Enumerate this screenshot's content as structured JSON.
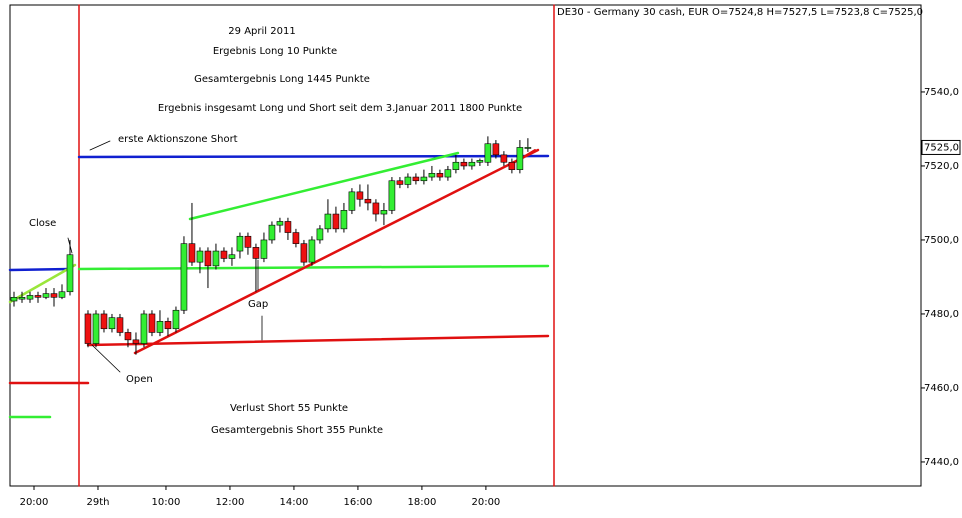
{
  "chart_data": {
    "type": "candlestick",
    "title": "DE30 - Germany 30 cash, EUR O=7524,8 H=7527,5 L=7523,8 C=7525,0",
    "annotations": [
      "29 April 2011",
      "Ergebnis Long 10 Punkte",
      "Gesamtergebnis Long 1445 Punkte",
      "Ergebnis insgesamt Long und Short seit dem 3.Januar 2011 1800  Punkte",
      "erste Aktionszone Short",
      "Close",
      "Open",
      "Gap",
      "Verlust Short 55 Punkte",
      "Gesamtergebnis Short 355 Punkte"
    ],
    "up_color": "#33ee33",
    "down_color": "#ee1111",
    "x": [
      0.5,
      1.5,
      2.5,
      3.5,
      4.5,
      5.5,
      6.5,
      7.5,
      9.75,
      10.75,
      11.75,
      12.75,
      13.75,
      14.75,
      15.75,
      16.75,
      17.75,
      18.75,
      19.75,
      20.75,
      21.75,
      22.75,
      23.75,
      24.75,
      25.75,
      26.75,
      27.75,
      28.75,
      29.75,
      30.75,
      31.75,
      32.75,
      33.75,
      34.75,
      35.75,
      36.75,
      37.75,
      38.75,
      39.75,
      40.75,
      41.75,
      42.75,
      43.75,
      44.75,
      45.75,
      46.75,
      47.75,
      48.75,
      49.75,
      50.75,
      51.75,
      52.75,
      53.75,
      54.75,
      55.75,
      56.75,
      57.75,
      58.75,
      59.75,
      60.75,
      61.75,
      62.75,
      63.75,
      64.75
    ],
    "open": [
      7483.5,
      7484,
      7484,
      7485,
      7484.5,
      7485.5,
      7484.5,
      7486,
      7480,
      7472,
      7480,
      7476,
      7479,
      7475,
      7473,
      7472,
      7480,
      7475,
      7478,
      7476,
      7481,
      7499,
      7494,
      7497,
      7493,
      7497,
      7495,
      7497,
      7501,
      7498,
      7495,
      7500,
      7504,
      7505,
      7502,
      7499,
      7494,
      7500,
      7503,
      7507,
      7503,
      7508,
      7513,
      7511,
      7510,
      7507,
      7508,
      7516,
      7515,
      7517,
      7516,
      7517,
      7518,
      7517,
      7519,
      7521,
      7520,
      7521,
      7521,
      7526,
      7523,
      7521,
      7519,
      7524.8
    ],
    "high": [
      7486,
      7486,
      7486,
      7486,
      7487,
      7487,
      7488,
      7500,
      7481,
      7481,
      7481,
      7480,
      7480,
      7476,
      7475,
      7481,
      7481,
      7481,
      7479,
      7482,
      7501,
      7510,
      7498,
      7498,
      7499,
      7498,
      7498,
      7502,
      7502,
      7499,
      7502,
      7505,
      7506,
      7506,
      7503,
      7500,
      7501,
      7504,
      7511,
      7509,
      7510,
      7514,
      7515,
      7515,
      7511,
      7510,
      7517,
      7517,
      7518,
      7518,
      7519,
      7520,
      7519,
      7520,
      7523,
      7522,
      7522,
      7522,
      7528,
      7527,
      7524,
      7522,
      7527,
      7527.5
    ],
    "low": [
      7482,
      7483,
      7483,
      7483,
      7484,
      7482,
      7484,
      7485,
      7471,
      7471,
      7475,
      7475,
      7474,
      7471,
      7469,
      7471,
      7474,
      7474,
      7474,
      7475,
      7480,
      7493,
      7491,
      7487,
      7492,
      7494,
      7493,
      7495,
      7496,
      7486,
      7494,
      7499,
      7502,
      7500,
      7498,
      7493,
      7493,
      7499,
      7502,
      7502,
      7502,
      7507,
      7509,
      7508,
      7505,
      7504,
      7507,
      7514,
      7514,
      7515,
      7515,
      7516,
      7516,
      7516,
      7518,
      7519,
      7519,
      7520,
      7520,
      7522,
      7520,
      7518,
      7518,
      7523.8
    ],
    "close": [
      7484.5,
      7484.5,
      7485,
      7484.5,
      7485.5,
      7484.5,
      7486,
      7496,
      7472,
      7480,
      7476,
      7479,
      7475,
      7473,
      7472,
      7480,
      7475,
      7478,
      7476,
      7481,
      7499,
      7494,
      7497,
      7493,
      7497,
      7495,
      7496,
      7501,
      7498,
      7495,
      7500,
      7504,
      7505,
      7502,
      7499,
      7494,
      7500,
      7503,
      7507,
      7503,
      7508,
      7513,
      7511,
      7510,
      7507,
      7508,
      7516,
      7515,
      7517,
      7516,
      7517,
      7518,
      7517,
      7519,
      7521,
      7520,
      7521,
      7521.5,
      7526,
      7523,
      7521,
      7519,
      7525,
      7525
    ],
    "last_price": {
      "value": 7525,
      "label": "7525,0"
    },
    "xlim": [
      0,
      113.9
    ],
    "xticks": [
      {
        "value": 3,
        "label": "20:00"
      },
      {
        "value": 11,
        "label": "29th"
      },
      {
        "value": 19.5,
        "label": "10:00"
      },
      {
        "value": 27.5,
        "label": "12:00"
      },
      {
        "value": 35.5,
        "label": "14:00"
      },
      {
        "value": 43.5,
        "label": "16:00"
      },
      {
        "value": 51.5,
        "label": "18:00"
      },
      {
        "value": 59.5,
        "label": "20:00"
      }
    ],
    "ylim": [
      7433.5,
      7563.5
    ],
    "yticks": [
      {
        "value": 7440,
        "label": "7440,0"
      },
      {
        "value": 7460,
        "label": "7460,0"
      },
      {
        "value": 7480,
        "label": "7480,0"
      },
      {
        "value": 7500,
        "label": "7500,0"
      },
      {
        "value": 7520,
        "label": "7520,0"
      },
      {
        "value": 7540,
        "label": "7540,0"
      }
    ]
  }
}
